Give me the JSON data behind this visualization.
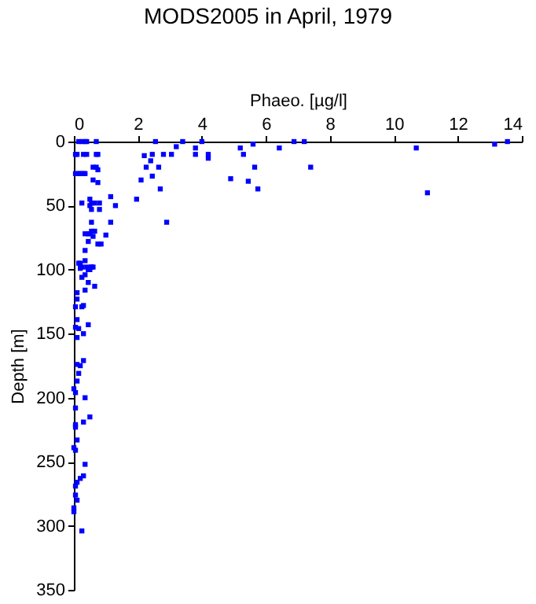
{
  "chart_data": {
    "type": "scatter",
    "title": "MODS2005 in April, 1979",
    "xlabel": "Phaeo. [µg/l]",
    "ylabel": "Depth [m]",
    "xlim": [
      0,
      14
    ],
    "xticks": [
      0,
      2,
      4,
      6,
      8,
      10,
      12,
      14
    ],
    "ylim": [
      350,
      0
    ],
    "yticks": [
      0,
      50,
      100,
      150,
      200,
      250,
      300,
      350
    ],
    "grid": false,
    "marker": "square",
    "legend": false,
    "series": [
      {
        "color": "#0000ff",
        "x": [
          2.55,
          2.45,
          2.26,
          2.4,
          2.2,
          2.1,
          2.65,
          2.45,
          2.7,
          1.96,
          2.9,
          2.8,
          3.05,
          3.2,
          3.4,
          3.8,
          3.8,
          4.0,
          4.2,
          4.2,
          4.9,
          5.2,
          5.3,
          5.45,
          5.6,
          5.65,
          5.75,
          6.42,
          6.88,
          7.2,
          7.4,
          10.7,
          11.05,
          13.15,
          13.55,
          0.15,
          0.25,
          0.35,
          0.4,
          0.7,
          0.05,
          0.1,
          0.3,
          0.4,
          0.7,
          0.75,
          0.6,
          0.7,
          0.75,
          0.05,
          0.15,
          0.2,
          0.3,
          0.35,
          0.6,
          0.75,
          1.15,
          0.5,
          0.25,
          0.55,
          0.8,
          0.65,
          1.3,
          0.5,
          0.55,
          0.8,
          0.55,
          1.15,
          0.55,
          0.65,
          0.35,
          0.45,
          0.5,
          1.0,
          0.6,
          0.45,
          0.75,
          0.85,
          0.35,
          0.35,
          0.15,
          0.2,
          0.25,
          0.4,
          0.55,
          0.6,
          0.5,
          0.2,
          0.45,
          0.55,
          0.35,
          0.25,
          0.45,
          0.65,
          0.35,
          0.1,
          0.1,
          0.05,
          0.25,
          0.3,
          0.1,
          0.45,
          0.05,
          0.15,
          0.3,
          0.1,
          0.3,
          0.1,
          0.2,
          0.15,
          0.1,
          0,
          0.05,
          0.35,
          0.05,
          0.5,
          0.3,
          0.05,
          0.05,
          0.1,
          0,
          0.05,
          0.35,
          0.3,
          0.2,
          0.1,
          0.05,
          0.05,
          0.1,
          0,
          0,
          0.25
        ],
        "values": [
          0,
          10,
          20,
          15,
          11,
          30,
          20,
          27,
          37,
          45,
          63,
          10,
          10,
          4,
          0,
          5,
          10,
          0,
          10,
          13,
          29,
          5,
          10,
          31,
          2,
          20,
          37,
          5,
          0,
          0,
          20,
          5,
          40,
          2,
          0,
          0,
          0,
          0,
          0,
          0,
          10,
          10,
          10,
          10,
          10,
          10,
          20,
          20,
          22,
          25,
          25,
          25,
          25,
          25,
          30,
          32,
          43,
          45,
          48,
          48,
          48,
          48,
          50,
          50,
          53,
          53,
          63,
          63,
          70,
          70,
          72,
          72,
          72,
          73,
          74,
          78,
          80,
          80,
          85,
          93,
          95,
          95,
          98,
          98,
          98,
          98,
          100,
          99,
          100,
          98,
          104,
          106,
          110,
          113,
          116,
          118,
          123,
          129,
          129,
          128,
          139,
          143,
          145,
          146,
          150,
          153,
          171,
          174,
          175,
          181,
          187,
          193,
          196,
          200,
          208,
          215,
          219,
          221,
          223,
          233,
          239,
          241,
          252,
          261,
          263,
          266,
          269,
          276,
          280,
          286,
          289,
          304
        ]
      }
    ]
  }
}
